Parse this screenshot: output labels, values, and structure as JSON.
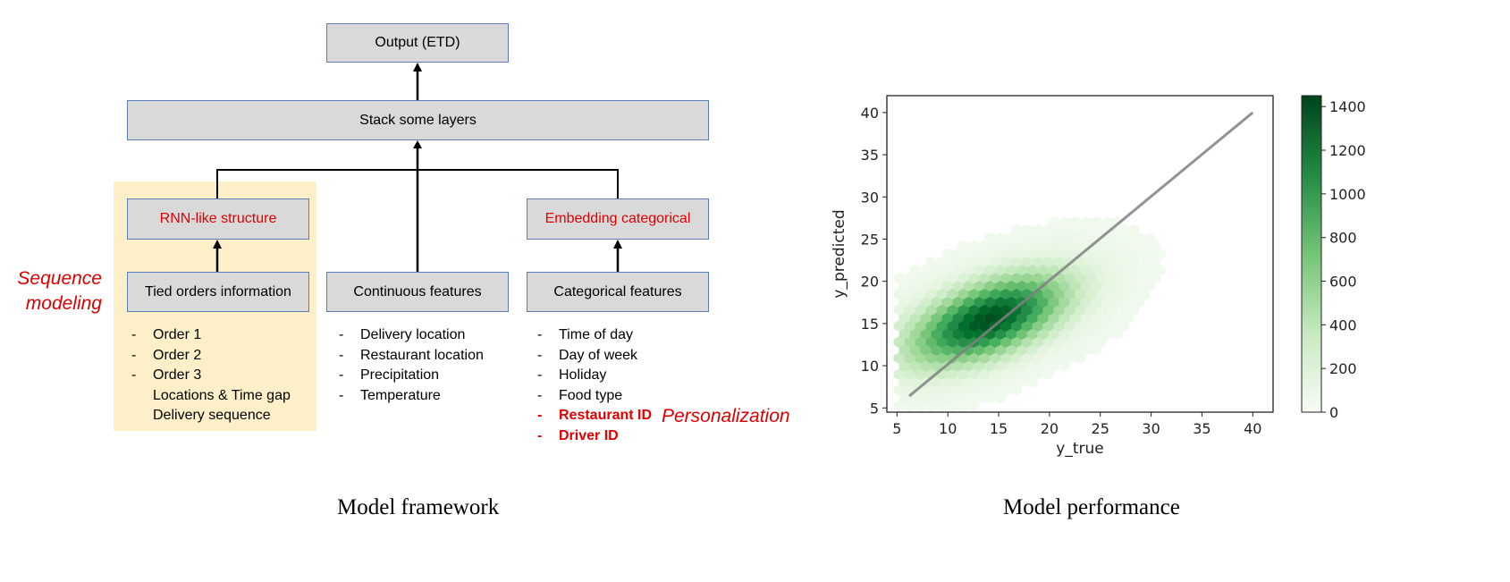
{
  "framework": {
    "output_box": "Output (ETD)",
    "stack_box": "Stack some layers",
    "rnn_box": "RNN-like structure",
    "embedding_box": "Embedding categorical",
    "tied_box": "Tied orders information",
    "continuous_box": "Continuous features",
    "categorical_box": "Categorical features",
    "tied_items": [
      {
        "dash": "-",
        "text": "Order 1"
      },
      {
        "dash": "-",
        "text": "Order 2"
      },
      {
        "dash": "-",
        "text": "Order 3"
      },
      {
        "dash": "",
        "text": "Locations & Time gap"
      },
      {
        "dash": "",
        "text": "Delivery sequence"
      }
    ],
    "continuous_items": [
      "Delivery location",
      "Restaurant location",
      "Precipitation",
      "Temperature"
    ],
    "categorical_items": [
      "Time of day",
      "Day of week",
      "Holiday",
      "Food type"
    ],
    "categorical_red_items": [
      "Restaurant ID",
      "Driver ID"
    ],
    "sequence_label_line1": "Sequence",
    "sequence_label_line2": "modeling",
    "personalization_label": "Personalization",
    "caption": "Model framework",
    "highlight_color": "#fdf0c8",
    "box_color": "#d9d9d9",
    "accent_red": "#e00000"
  },
  "performance": {
    "caption": "Model performance",
    "chart_data": {
      "type": "heatmap",
      "subtype": "hexbin",
      "xlabel": "y_true",
      "ylabel": "y_predicted",
      "xlim": [
        4,
        42
      ],
      "ylim": [
        4.5,
        42
      ],
      "x_ticks": [
        5,
        10,
        15,
        20,
        25,
        30,
        35,
        40
      ],
      "y_ticks": [
        5,
        10,
        15,
        20,
        25,
        30,
        35,
        40
      ],
      "colormap": "Greens",
      "colorbar": {
        "min": 0,
        "max": 1450,
        "ticks": [
          0,
          200,
          400,
          600,
          800,
          1000,
          1200,
          1400
        ]
      },
      "density_peak": {
        "x": 14,
        "y": 15.5,
        "count": 1400
      },
      "reference_line": {
        "x": [
          6.2,
          40
        ],
        "y": [
          6.4,
          40
        ],
        "color": "#808080"
      },
      "grid": false
    }
  }
}
